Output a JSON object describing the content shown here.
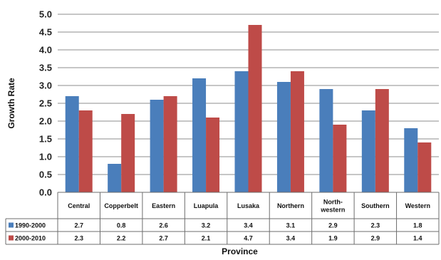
{
  "chart_data": {
    "type": "bar",
    "xlabel": "Province",
    "ylabel": "Growth Rate",
    "ylim": [
      0,
      5.0
    ],
    "yticks": [
      "0.0",
      "0.5",
      "1.0",
      "1.5",
      "2.0",
      "2.5",
      "3.0",
      "3.5",
      "4.0",
      "4.5",
      "5.0"
    ],
    "grid": true,
    "legend": "data-table-left",
    "categories": [
      [
        "Central"
      ],
      [
        "Copperbelt"
      ],
      [
        "Eastern"
      ],
      [
        "Luapula"
      ],
      [
        "Lusaka"
      ],
      [
        "Northern"
      ],
      [
        "North-",
        "western"
      ],
      [
        "Southern"
      ],
      [
        "Western"
      ]
    ],
    "series": [
      {
        "name": "1990-2000",
        "color": "#4a7ebb",
        "values": [
          2.7,
          0.8,
          2.6,
          3.2,
          3.4,
          3.1,
          2.9,
          2.3,
          1.8
        ],
        "labels": [
          "2.7",
          "0.8",
          "2.6",
          "3.2",
          "3.4",
          "3.1",
          "2.9",
          "2.3",
          "1.8"
        ]
      },
      {
        "name": "2000-2010",
        "color": "#be4b48",
        "values": [
          2.3,
          2.2,
          2.7,
          2.1,
          4.7,
          3.4,
          1.9,
          2.9,
          1.4
        ],
        "labels": [
          "2.3",
          "2.2",
          "2.7",
          "2.1",
          "4.7",
          "3.4",
          "1.9",
          "2.9",
          "1.4"
        ]
      }
    ]
  }
}
